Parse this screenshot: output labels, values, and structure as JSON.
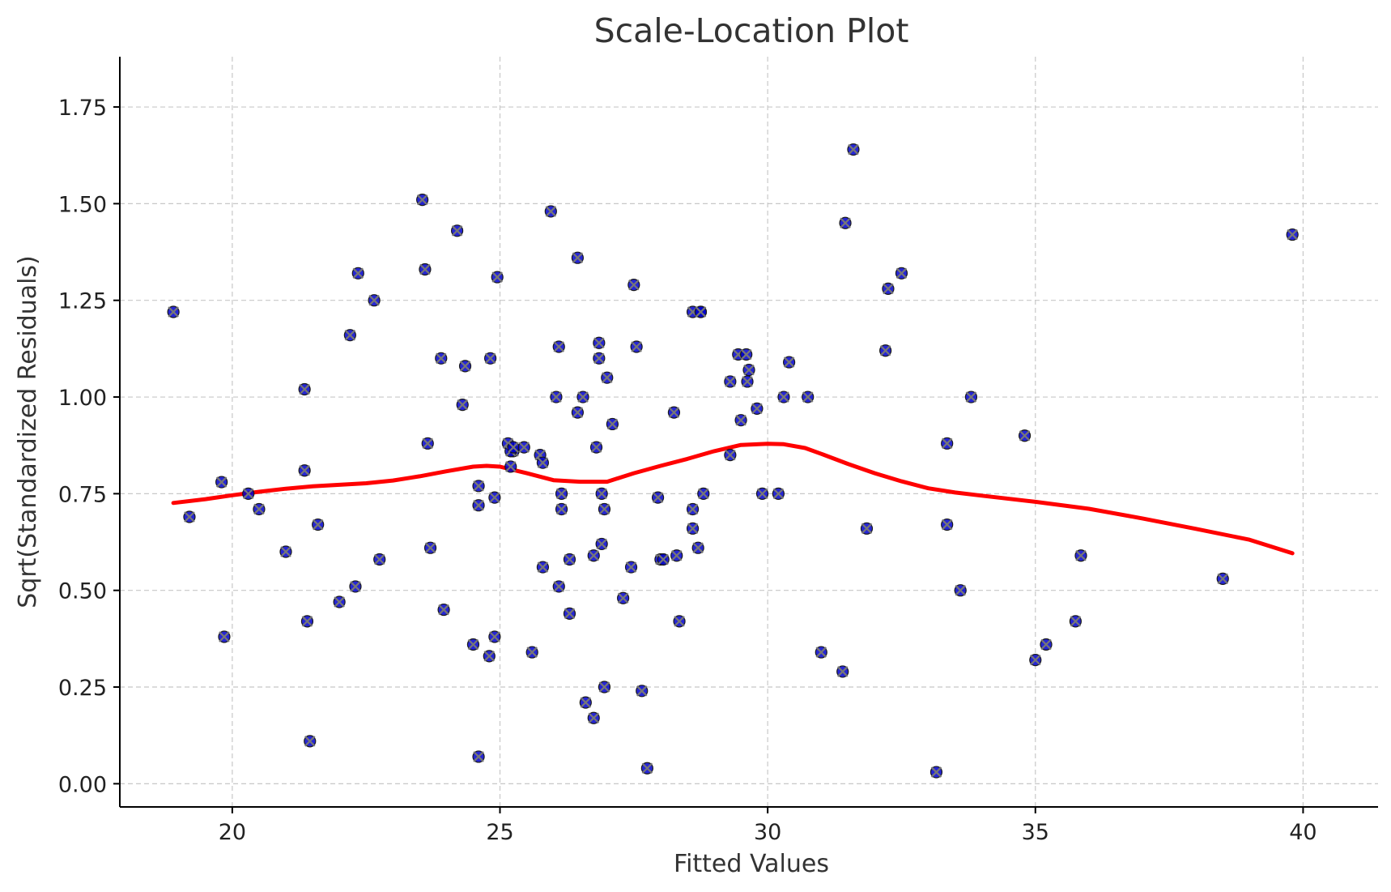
{
  "chart_data": {
    "type": "scatter",
    "title": "Scale-Location Plot",
    "xlabel": "Fitted Values",
    "ylabel": "Sqrt(Standardized Residuals)",
    "xlim": [
      17.9,
      41.4
    ],
    "ylim": [
      -0.06,
      1.88
    ],
    "xticks": [
      20,
      25,
      30,
      35,
      40
    ],
    "yticks": [
      0.0,
      0.25,
      0.5,
      0.75,
      1.0,
      1.25,
      1.5,
      1.75
    ],
    "grid": true,
    "colors": {
      "points": "#0000cc",
      "point_edge": "#1a1a1a",
      "marker_x": "#777777",
      "trend": "#ff0000"
    },
    "points": {
      "x": [
        18.9,
        19.2,
        19.8,
        19.85,
        20.3,
        20.5,
        21.0,
        21.35,
        21.35,
        21.4,
        21.45,
        21.6,
        22.0,
        22.2,
        22.3,
        22.35,
        22.65,
        22.75,
        23.55,
        23.6,
        23.65,
        23.7,
        23.9,
        23.95,
        24.2,
        24.3,
        24.35,
        24.5,
        24.6,
        24.6,
        24.6,
        24.8,
        24.82,
        24.9,
        24.9,
        24.95,
        25.15,
        25.2,
        25.25,
        25.2,
        25.25,
        25.45,
        25.6,
        25.75,
        25.8,
        25.8,
        25.95,
        26.05,
        26.1,
        26.1,
        26.15,
        26.15,
        26.3,
        26.3,
        26.45,
        26.45,
        26.55,
        26.6,
        26.75,
        26.75,
        26.8,
        26.85,
        26.85,
        26.9,
        26.9,
        26.95,
        26.95,
        27.0,
        27.1,
        27.3,
        27.45,
        27.5,
        27.55,
        27.65,
        27.75,
        27.95,
        28.0,
        28.05,
        28.25,
        28.3,
        28.35,
        28.6,
        28.6,
        28.6,
        28.7,
        28.75,
        28.75,
        28.8,
        29.3,
        29.3,
        29.45,
        29.5,
        29.6,
        29.62,
        29.65,
        29.8,
        29.9,
        30.2,
        30.3,
        30.4,
        30.75,
        31.0,
        31.4,
        31.45,
        31.6,
        31.85,
        32.2,
        32.25,
        32.5,
        33.15,
        33.35,
        33.35,
        33.6,
        33.8,
        34.8,
        35.0,
        35.2,
        35.75,
        35.85,
        38.5,
        39.8
      ],
      "y": [
        1.22,
        0.69,
        0.78,
        0.38,
        0.75,
        0.71,
        0.6,
        0.81,
        1.02,
        0.42,
        0.11,
        0.67,
        0.47,
        1.16,
        0.51,
        1.32,
        1.25,
        0.58,
        1.51,
        1.33,
        0.88,
        0.61,
        1.1,
        0.45,
        1.43,
        0.98,
        1.08,
        0.36,
        0.07,
        0.72,
        0.77,
        0.33,
        1.1,
        0.74,
        0.38,
        1.31,
        0.88,
        0.82,
        0.86,
        0.86,
        0.87,
        0.87,
        0.34,
        0.85,
        0.83,
        0.56,
        1.48,
        1.0,
        0.51,
        1.13,
        0.75,
        0.71,
        0.44,
        0.58,
        1.36,
        0.96,
        1.0,
        0.21,
        0.17,
        0.59,
        0.87,
        1.14,
        1.1,
        0.62,
        0.75,
        0.71,
        0.25,
        1.05,
        0.93,
        0.48,
        0.56,
        1.29,
        1.13,
        0.24,
        0.04,
        0.74,
        0.58,
        0.58,
        0.96,
        0.59,
        0.42,
        0.71,
        0.66,
        1.22,
        0.61,
        1.22,
        1.22,
        0.75,
        1.04,
        0.85,
        1.11,
        0.94,
        1.11,
        1.04,
        1.07,
        0.97,
        0.75,
        0.75,
        1.0,
        1.09,
        1.0,
        0.34,
        0.29,
        1.45,
        1.64,
        0.66,
        1.12,
        1.28,
        1.32,
        0.03,
        0.88,
        0.67,
        0.5,
        1.0,
        0.9,
        0.32,
        0.36,
        0.42,
        0.59,
        0.53,
        1.42
      ]
    },
    "trend": {
      "x": [
        18.9,
        19.5,
        20.0,
        20.5,
        21.0,
        21.5,
        22.0,
        22.5,
        23.0,
        23.5,
        24.0,
        24.5,
        24.75,
        25.0,
        25.5,
        26.0,
        26.5,
        27.0,
        27.5,
        28.0,
        28.5,
        29.0,
        29.5,
        30.0,
        30.3,
        30.7,
        31.0,
        31.5,
        32.0,
        32.5,
        33.0,
        33.5,
        34.0,
        35.0,
        36.0,
        37.0,
        38.0,
        39.0,
        39.8
      ],
      "y": [
        0.726,
        0.736,
        0.746,
        0.755,
        0.763,
        0.769,
        0.773,
        0.777,
        0.784,
        0.795,
        0.808,
        0.82,
        0.822,
        0.82,
        0.803,
        0.785,
        0.781,
        0.781,
        0.803,
        0.822,
        0.84,
        0.86,
        0.876,
        0.879,
        0.878,
        0.868,
        0.853,
        0.827,
        0.803,
        0.782,
        0.764,
        0.753,
        0.745,
        0.729,
        0.711,
        0.686,
        0.659,
        0.631,
        0.596
      ]
    }
  }
}
